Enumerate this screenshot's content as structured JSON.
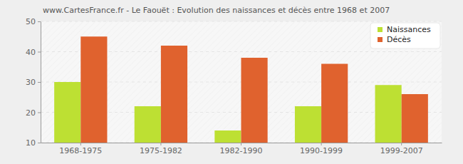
{
  "chart_data": {
    "type": "bar",
    "title": "www.CartesFrance.fr - Le Faouët : Evolution des naissances et décès entre 1968 et 2007",
    "categories": [
      "1968-1975",
      "1975-1982",
      "1982-1990",
      "1990-1999",
      "1999-2007"
    ],
    "series": [
      {
        "name": "Naissances",
        "color": "#bde033",
        "values": [
          30,
          22,
          14,
          22,
          29
        ]
      },
      {
        "name": "Décès",
        "color": "#e0622e",
        "values": [
          45,
          42,
          38,
          36,
          26
        ]
      }
    ],
    "ylim": [
      10,
      50
    ],
    "yticks": [
      10,
      20,
      30,
      40,
      50
    ],
    "grid": true,
    "legend": "top-right"
  }
}
